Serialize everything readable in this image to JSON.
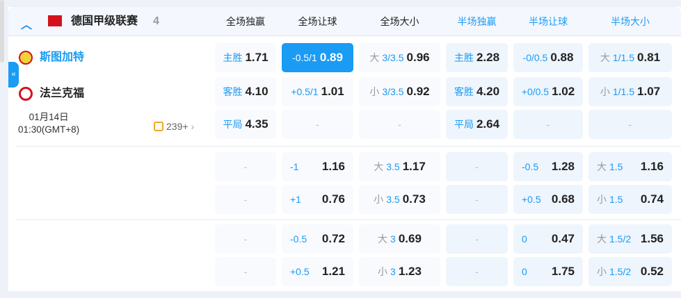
{
  "league": {
    "name": "德国甲级联赛",
    "count": "4",
    "flag_color": "#d4121c"
  },
  "columns": [
    "全场独赢",
    "全场让球",
    "全场大小",
    "半场独赢",
    "半场让球",
    "半场大小"
  ],
  "match": {
    "home": "斯图加特",
    "away": "法兰克福",
    "date": "01月14日",
    "time": "01:30(GMT+8)",
    "more": "239+"
  },
  "collapse_icon": "«",
  "colors": {
    "accent": "#1a9bf4"
  },
  "sections": [
    [
      [
        {
          "label": "主胜",
          "value": "1.71"
        },
        {
          "label": "-0.5/1",
          "value": "0.89",
          "selected": true
        },
        {
          "ou": "大",
          "label": "3/3.5",
          "value": "0.96"
        },
        {
          "label": "主胜",
          "value": "2.28"
        },
        {
          "label": "-0/0.5",
          "value": "0.88"
        },
        {
          "ou": "大",
          "label": "1/1.5",
          "value": "0.81"
        }
      ],
      [
        {
          "label": "客胜",
          "value": "4.10"
        },
        {
          "label": "+0.5/1",
          "value": "1.01"
        },
        {
          "ou": "小",
          "label": "3/3.5",
          "value": "0.92"
        },
        {
          "label": "客胜",
          "value": "4.20"
        },
        {
          "label": "+0/0.5",
          "value": "1.02"
        },
        {
          "ou": "小",
          "label": "1/1.5",
          "value": "1.07"
        }
      ],
      [
        {
          "label": "平局",
          "value": "4.35"
        },
        {
          "dash": "-"
        },
        {
          "dash": "-"
        },
        {
          "label": "平局",
          "value": "2.64"
        },
        {
          "dash": "-"
        },
        {
          "dash": "-"
        }
      ]
    ],
    [
      [
        {
          "dash": "-"
        },
        {
          "label": "-1",
          "value": "1.16"
        },
        {
          "ou": "大",
          "label": "3.5",
          "value": "1.17"
        },
        {
          "dash": "-"
        },
        {
          "label": "-0.5",
          "value": "1.28"
        },
        {
          "ou": "大",
          "label": "1.5",
          "value": "1.16"
        }
      ],
      [
        {
          "dash": "-"
        },
        {
          "label": "+1",
          "value": "0.76"
        },
        {
          "ou": "小",
          "label": "3.5",
          "value": "0.73"
        },
        {
          "dash": "-"
        },
        {
          "label": "+0.5",
          "value": "0.68"
        },
        {
          "ou": "小",
          "label": "1.5",
          "value": "0.74"
        }
      ]
    ],
    [
      [
        {
          "dash": "-"
        },
        {
          "label": "-0.5",
          "value": "0.72"
        },
        {
          "ou": "大",
          "label": "3",
          "value": "0.69"
        },
        {
          "dash": "-"
        },
        {
          "label": "0",
          "value": "0.47"
        },
        {
          "ou": "大",
          "label": "1.5/2",
          "value": "1.56"
        }
      ],
      [
        {
          "dash": "-"
        },
        {
          "label": "+0.5",
          "value": "1.21"
        },
        {
          "ou": "小",
          "label": "3",
          "value": "1.23"
        },
        {
          "dash": "-"
        },
        {
          "label": "0",
          "value": "1.75"
        },
        {
          "ou": "小",
          "label": "1.5/2",
          "value": "0.52"
        }
      ]
    ]
  ]
}
